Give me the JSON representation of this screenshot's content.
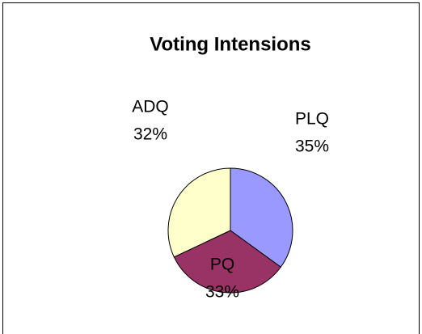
{
  "chart_data": {
    "type": "pie",
    "title": "Voting Intensions",
    "categories": [
      "PLQ",
      "PQ",
      "ADQ"
    ],
    "values": [
      35,
      33,
      32
    ],
    "value_labels": [
      "35%",
      "33%",
      "32%"
    ],
    "colors": [
      "#9999ff",
      "#993366",
      "#ffffcc"
    ]
  }
}
